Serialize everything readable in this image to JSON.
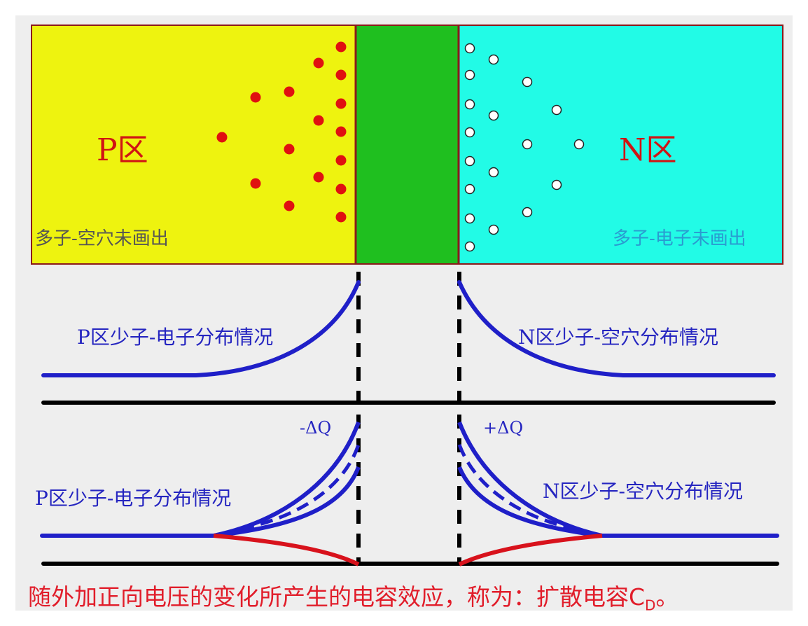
{
  "p_region": {
    "title": "P区",
    "majority_note": "多子-空穴未画出",
    "color": "#eef30f"
  },
  "junction": {
    "color": "#1fbf1f"
  },
  "n_region": {
    "title": "N区",
    "majority_note": "多子-电子未画出",
    "color": "#22fbe6"
  },
  "middle_plot": {
    "p_label": "P区少子-电子分布情况",
    "n_label": "N区少子-空穴分布情况"
  },
  "bottom_plot": {
    "p_label": "P区少子-电子分布情况",
    "n_label": "N区少子-空穴分布情况",
    "minus_dq": "-ΔQ",
    "plus_dq": "+ΔQ"
  },
  "caption": {
    "text": "随外加正向电压的变化所产生的电容效应，称为：扩散电容C",
    "subscript": "D",
    "suffix": "。"
  },
  "colors": {
    "curve": "#1f1fc8",
    "red": "#d8121c",
    "axis": "#000000",
    "label_blue": "#2525c0",
    "title_red": "#d01414"
  }
}
